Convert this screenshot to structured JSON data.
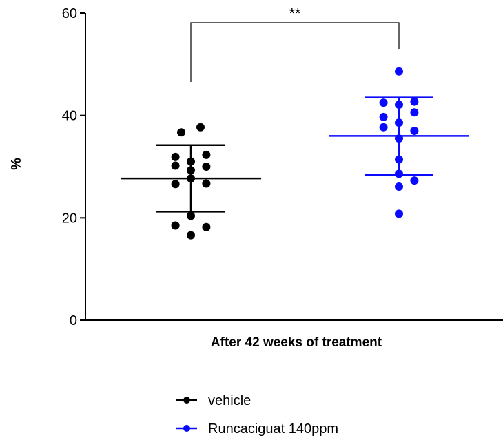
{
  "chart_data": {
    "type": "scatter",
    "xlabel": "After 42 weeks of treatment",
    "ylabel": "%",
    "ylim": [
      0,
      60
    ],
    "yticks": [
      0,
      20,
      40,
      60
    ],
    "grid": false,
    "legend_position": "bottom-center",
    "significance": {
      "label": "**",
      "between": [
        "vehicle",
        "Runcaciguat 140ppm"
      ]
    },
    "series": [
      {
        "name": "vehicle",
        "color": "#000000",
        "mean": 27.7,
        "error_upper": 34.2,
        "error_lower": 21.2,
        "points": [
          {
            "dx": -1,
            "y": 36.7
          },
          {
            "dx": 1,
            "y": 37.7
          },
          {
            "dx": -1.6,
            "y": 31.9
          },
          {
            "dx": 1.6,
            "y": 32.3
          },
          {
            "dx": 0,
            "y": 31.0
          },
          {
            "dx": -1.6,
            "y": 30.2
          },
          {
            "dx": 1.6,
            "y": 30.0
          },
          {
            "dx": 0,
            "y": 29.3
          },
          {
            "dx": 0,
            "y": 27.7
          },
          {
            "dx": -1.6,
            "y": 26.6
          },
          {
            "dx": 1.6,
            "y": 26.7
          },
          {
            "dx": 0,
            "y": 20.4
          },
          {
            "dx": -1.6,
            "y": 18.5
          },
          {
            "dx": 1.6,
            "y": 18.2
          },
          {
            "dx": 0,
            "y": 16.6
          }
        ]
      },
      {
        "name": "Runcaciguat 140ppm",
        "color": "#0a0aff",
        "mean": 36.0,
        "error_upper": 43.5,
        "error_lower": 28.4,
        "points": [
          {
            "dx": 0,
            "y": 48.6
          },
          {
            "dx": -1.6,
            "y": 42.5
          },
          {
            "dx": 0,
            "y": 42.1
          },
          {
            "dx": 1.6,
            "y": 42.7
          },
          {
            "dx": 1.6,
            "y": 40.6
          },
          {
            "dx": -1.6,
            "y": 39.7
          },
          {
            "dx": 0,
            "y": 38.6
          },
          {
            "dx": -1.6,
            "y": 37.7
          },
          {
            "dx": 1.6,
            "y": 37.0
          },
          {
            "dx": 0,
            "y": 35.5
          },
          {
            "dx": 0,
            "y": 31.4
          },
          {
            "dx": 0,
            "y": 28.6
          },
          {
            "dx": 1.6,
            "y": 27.3
          },
          {
            "dx": 0,
            "y": 26.1
          },
          {
            "dx": 0,
            "y": 20.8
          }
        ]
      }
    ]
  }
}
